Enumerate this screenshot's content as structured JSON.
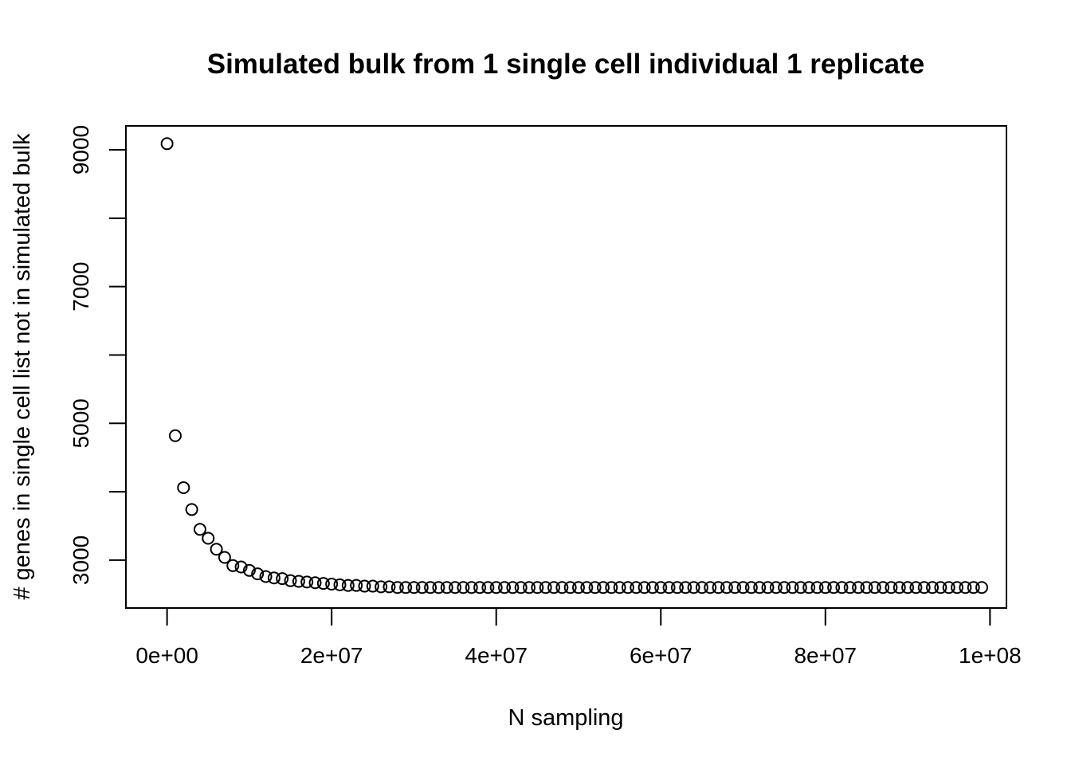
{
  "chart_data": {
    "type": "scatter",
    "title": "Simulated bulk from 1 single cell individual 1 replicate",
    "xlabel": "N sampling",
    "ylabel": "# genes in single cell list not in simulated bulk",
    "xlim": [
      -5000000,
      102000000
    ],
    "ylim": [
      2300000,
      9350000
    ],
    "x_ticks": [
      0,
      20000000,
      40000000,
      60000000,
      80000000,
      100000000
    ],
    "x_tick_labels": [
      "0e+00",
      "2e+07",
      "4e+07",
      "6e+07",
      "8e+07",
      "1e+08"
    ],
    "y_ticks": [
      3000,
      4000,
      5000,
      6000,
      7000,
      8000,
      9000
    ],
    "y_tick_labels": [
      "3000",
      "",
      "5000",
      "",
      "7000",
      "",
      "9000"
    ],
    "x": [
      0,
      1000000,
      2000000,
      3000000,
      4000000,
      5000000,
      6000000,
      7000000,
      8000000,
      9000000,
      10000000,
      11000000,
      12000000,
      13000000,
      14000000,
      15000000,
      16000000,
      17000000,
      18000000,
      19000000,
      20000000,
      21000000,
      22000000,
      23000000,
      24000000,
      25000000,
      26000000,
      27000000,
      28000000,
      29000000,
      30000000,
      31000000,
      32000000,
      33000000,
      34000000,
      35000000,
      36000000,
      37000000,
      38000000,
      39000000,
      40000000,
      41000000,
      42000000,
      43000000,
      44000000,
      45000000,
      46000000,
      47000000,
      48000000,
      49000000,
      50000000,
      51000000,
      52000000,
      53000000,
      54000000,
      55000000,
      56000000,
      57000000,
      58000000,
      59000000,
      60000000,
      61000000,
      62000000,
      63000000,
      64000000,
      65000000,
      66000000,
      67000000,
      68000000,
      69000000,
      70000000,
      71000000,
      72000000,
      73000000,
      74000000,
      75000000,
      76000000,
      77000000,
      78000000,
      79000000,
      80000000,
      81000000,
      82000000,
      83000000,
      84000000,
      85000000,
      86000000,
      87000000,
      88000000,
      89000000,
      90000000,
      91000000,
      92000000,
      93000000,
      94000000,
      95000000,
      96000000,
      97000000,
      98000000,
      99000000
    ],
    "y": [
      9090,
      4820,
      4060,
      3740,
      3450,
      3320,
      3160,
      3040,
      2920,
      2900,
      2850,
      2800,
      2760,
      2740,
      2730,
      2700,
      2690,
      2680,
      2670,
      2660,
      2650,
      2640,
      2630,
      2630,
      2620,
      2620,
      2610,
      2610,
      2600,
      2600,
      2600,
      2600,
      2600,
      2600,
      2600,
      2600,
      2600,
      2600,
      2600,
      2600,
      2600,
      2600,
      2600,
      2600,
      2600,
      2600,
      2600,
      2600,
      2600,
      2600,
      2600,
      2600,
      2600,
      2600,
      2600,
      2600,
      2600,
      2600,
      2600,
      2600,
      2600,
      2600,
      2600,
      2600,
      2600,
      2600,
      2600,
      2600,
      2600,
      2600,
      2600,
      2600,
      2600,
      2600,
      2600,
      2600,
      2600,
      2600,
      2600,
      2600,
      2600,
      2600,
      2600,
      2600,
      2600,
      2600,
      2600,
      2600,
      2600,
      2600,
      2600,
      2600,
      2600,
      2600,
      2600,
      2600,
      2600,
      2600,
      2600,
      2600
    ],
    "grid": false,
    "legend": "none"
  }
}
